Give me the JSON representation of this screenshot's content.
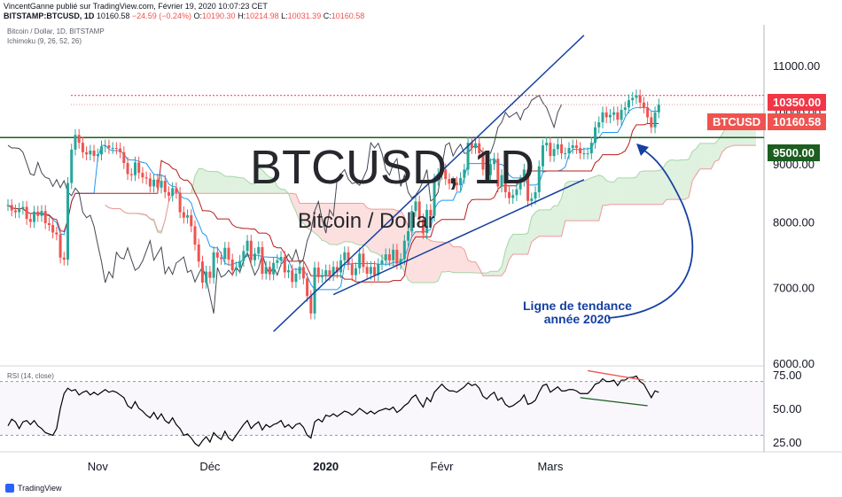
{
  "header": {
    "publisher_line": "VincentGanne publié sur TradingView.com, Février 19, 2020 10:07:23 CET",
    "symbol": "BITSTAMP:BTCUSD, 1D",
    "last": "10160.58",
    "change": "−24.59 (−0.24%)",
    "o_label": "O:",
    "o_value": "10190.30",
    "h_label": "H:",
    "h_value": "10214.98",
    "l_label": "L:",
    "l_value": "10031.39",
    "c_label": "C:",
    "c_value": "10160.58"
  },
  "pane_labels": {
    "symbol": "Bitcoin / Dollar, 1D, BITSTAMP",
    "ichimoku": "Ichimoku (9, 26, 52, 26)",
    "rsi": "RSI (14, close)"
  },
  "watermark": {
    "ticker": "BTCUSD, 1D",
    "name": "Bitcoin / Dollar"
  },
  "annotation": {
    "line1": "Ligne de tendance",
    "line2": "année 2020"
  },
  "price_tags": {
    "resistance": "10350.00",
    "last": "10160.58",
    "symbol": "BTCUSD",
    "support": "9500.00"
  },
  "footer": {
    "brand": "TradingView"
  },
  "colors": {
    "up": "#26a69a",
    "down": "#ef5350",
    "trendline": "#1540a1",
    "support": "#1b5e20",
    "resistance": "#f23645"
  },
  "chart_data": [
    {
      "type": "candlestick",
      "title": "Bitcoin / Dollar, 1D, BITSTAMP",
      "y_scale": "log",
      "y_ticks": [
        "11000.00",
        "10000.00",
        "9000.00",
        "8000.00",
        "7000.00",
        "6000.00"
      ],
      "x_ticks": [
        "Nov",
        "Déc",
        "2020",
        "Févr",
        "Mars"
      ],
      "ylim": [
        6000,
        11800
      ],
      "horizontal_lines": [
        10350,
        9500
      ],
      "trendlines": [
        {
          "name": "Ligne de tendance année 2020",
          "from": [
            "2019-12-18",
            6400
          ],
          "to": [
            "2020-03-10",
            11700
          ]
        },
        {
          "from": [
            "2020-01-03",
            6900
          ],
          "to": [
            "2020-03-10",
            8720
          ]
        }
      ],
      "close": [
        8280,
        8190,
        8160,
        8220,
        8250,
        8050,
        8000,
        8170,
        8100,
        8180,
        7980,
        7950,
        7830,
        7800,
        7440,
        7410,
        8660,
        9270,
        9550,
        9400,
        9220,
        9180,
        9250,
        9150,
        9180,
        9330,
        9350,
        9300,
        9300,
        9290,
        9220,
        9020,
        8820,
        8800,
        9030,
        8840,
        8760,
        8740,
        8600,
        8720,
        8580,
        8700,
        8500,
        8440,
        8570,
        8490,
        8160,
        8070,
        8110,
        7930,
        7640,
        7380,
        7070,
        7230,
        7140,
        7520,
        7440,
        7420,
        7590,
        7410,
        7250,
        7290,
        7390,
        7540,
        7700,
        7400,
        7500,
        7600,
        7200,
        7300,
        7190,
        7360,
        7400,
        7450,
        7220,
        7250,
        7080,
        7200,
        7300,
        7130,
        6880,
        6640,
        7290,
        7150,
        7180,
        7250,
        7180,
        7300,
        7220,
        7400,
        7520,
        7340,
        7180,
        7280,
        7500,
        7300,
        7200,
        7300,
        7180,
        7340,
        7400,
        7490,
        7400,
        7560,
        7350,
        7420,
        7700,
        7850,
        8180,
        8340,
        8040,
        7820,
        8200,
        8100,
        8720,
        8820,
        8900,
        8730,
        8650,
        8670,
        8620,
        8750,
        8900,
        9400,
        9300,
        9390,
        9200,
        8900,
        8800,
        9000,
        9100,
        8600,
        8800,
        8500,
        8400,
        8450,
        8550,
        8700,
        8900,
        8350,
        8390,
        8500,
        8960,
        9350,
        9400,
        9150,
        9280,
        9370,
        9200,
        9200,
        9300,
        9350,
        9300,
        9200,
        9200,
        9200,
        9400,
        9700,
        9800,
        10000,
        9900,
        9950,
        10000,
        9850,
        10050,
        10100,
        10250,
        10300,
        10350,
        10200,
        10100,
        9900,
        9700,
        10000,
        10160
      ],
      "rsi_ticks": [
        "75.00",
        "50.00",
        "25.00"
      ],
      "rsi_ylim": [
        20,
        82
      ],
      "rsi": [
        37,
        42,
        40,
        35,
        40,
        41,
        38,
        41,
        37,
        35,
        32,
        31,
        30,
        35,
        50,
        61,
        65,
        63,
        64,
        60,
        62,
        63,
        60,
        62,
        60,
        62,
        64,
        62,
        63,
        62,
        60,
        58,
        52,
        50,
        55,
        50,
        48,
        45,
        43,
        47,
        42,
        46,
        41,
        39,
        43,
        38,
        35,
        30,
        31,
        28,
        24,
        22,
        26,
        29,
        25,
        32,
        29,
        27,
        33,
        28,
        26,
        30,
        34,
        38,
        41,
        35,
        38,
        40,
        34,
        38,
        36,
        38,
        39,
        41,
        36,
        38,
        35,
        38,
        39,
        36,
        30,
        28,
        40,
        42,
        40,
        45,
        44,
        46,
        44,
        46,
        48,
        47,
        45,
        47,
        50,
        48,
        46,
        48,
        46,
        48,
        49,
        50,
        49,
        51,
        47,
        49,
        52,
        54,
        58,
        60,
        55,
        51,
        58,
        55,
        62,
        65,
        68,
        65,
        63,
        63,
        62,
        64,
        66,
        69,
        67,
        68,
        65,
        59,
        57,
        60,
        62,
        56,
        58,
        53,
        51,
        52,
        54,
        56,
        60,
        53,
        54,
        56,
        62,
        67,
        68,
        62,
        64,
        66,
        63,
        63,
        64,
        64,
        63,
        61,
        61,
        61,
        64,
        68,
        69,
        72,
        70,
        70,
        71,
        67,
        71,
        71,
        73,
        73,
        74,
        70,
        68,
        63,
        58,
        63,
        62
      ]
    }
  ]
}
